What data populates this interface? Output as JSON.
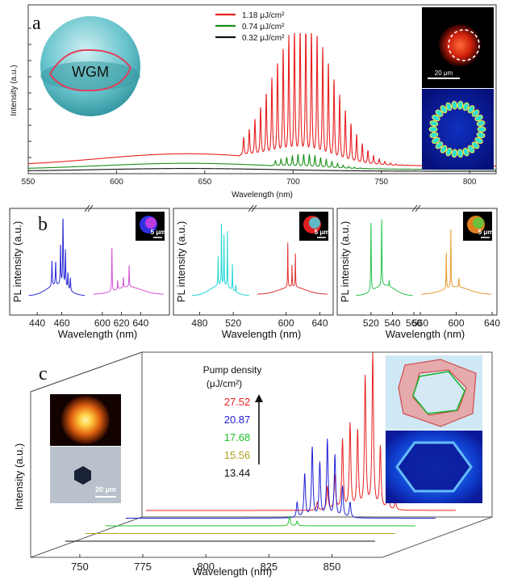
{
  "panel_a": {
    "letter": "a",
    "wgm_label": "WGM",
    "scalebar_label": "20 μm",
    "chart_data": {
      "type": "line",
      "xlabel": "Wavelength (nm)",
      "ylabel": "Intensity (a.u.)",
      "xlim": [
        550,
        815
      ],
      "xticks": [
        550,
        600,
        650,
        700,
        750,
        800
      ],
      "legend_position": "top-center",
      "series": [
        {
          "name": "1.18 μJ/cm²",
          "color": "#e8201f",
          "baseline": 0.05,
          "broad_amp": 0.09,
          "peaks_start": 672,
          "peaks_end": 773,
          "spacing": 3.2,
          "peak_center": 706,
          "peak_max": 1.0,
          "peak_width": 24
        },
        {
          "name": "0.74 μJ/cm²",
          "color": "#1a8f1a",
          "baseline": 0.025,
          "broad_amp": 0.045,
          "peaks_start": 690,
          "peaks_end": 752,
          "spacing": 3.2,
          "peak_center": 707,
          "peak_max": 0.09,
          "peak_width": 18
        },
        {
          "name": "0.32 μJ/cm²",
          "color": "#111111",
          "baseline": 0.012,
          "broad_amp": 0.02,
          "peaks_start": 0,
          "peaks_end": 0,
          "spacing": 3.2,
          "peak_center": 700,
          "peak_max": 0,
          "peak_width": 20
        }
      ]
    }
  },
  "panel_b": {
    "letter": "b",
    "scalebar_label": "5 μm",
    "subplots": [
      {
        "xlabel": "Wavelength (nm)",
        "ylabel": "PL intensity (a.u.)",
        "seg1": {
          "xlim": [
            432,
            480
          ],
          "xticks": [
            440,
            460
          ],
          "color": "#2b2bd6",
          "peaks": [
            [
              452,
              0.35
            ],
            [
              455,
              0.32
            ],
            [
              459,
              0.55
            ],
            [
              461,
              1.0
            ],
            [
              463,
              0.5
            ],
            [
              465,
              0.22
            ],
            [
              467,
              0.18
            ]
          ]
        },
        "seg2": {
          "xlim": [
            590,
            665
          ],
          "xticks": [
            600,
            620,
            640
          ],
          "color": "#d64fd6",
          "peaks": [
            [
              610,
              0.6
            ],
            [
              616,
              0.12
            ],
            [
              622,
              0.14
            ],
            [
              628,
              0.3
            ]
          ]
        }
      },
      {
        "xlabel": "Wavelength (nm)",
        "ylabel": "PL intensity (a.u.)",
        "seg1": {
          "xlim": [
            470,
            540
          ],
          "xticks": [
            480,
            520
          ],
          "color": "#20d6d6",
          "peaks": [
            [
              502,
              0.4
            ],
            [
              506,
              0.85
            ],
            [
              509,
              0.7
            ],
            [
              513,
              0.75
            ],
            [
              519,
              0.35
            ],
            [
              523,
              0.1
            ]
          ]
        },
        "seg2": {
          "xlim": [
            565,
            650
          ],
          "xticks": [
            600,
            640
          ],
          "color": "#e03030",
          "peaks": [
            [
              602,
              0.6
            ],
            [
              607,
              0.3
            ],
            [
              611,
              0.45
            ]
          ]
        }
      },
      {
        "xlabel": "Wavelength (nm)",
        "ylabel": "PL intensity (a.u.)",
        "seg1": {
          "xlim": [
            505,
            560
          ],
          "xticks": [
            520,
            540,
            560
          ],
          "color": "#22c24a",
          "peaks": [
            [
              520,
              0.95
            ],
            [
              530,
              0.9
            ],
            [
              537,
              0.08
            ]
          ]
        },
        "seg2": {
          "xlim": [
            560,
            640
          ],
          "xticks": [
            560,
            600,
            640
          ],
          "color": "#e89a2a",
          "peaks": [
            [
              589,
              0.5
            ],
            [
              594,
              0.78
            ],
            [
              603,
              0.12
            ]
          ]
        }
      }
    ]
  },
  "panel_c": {
    "letter": "c",
    "scalebar_label": "20 μm",
    "legend_title_line1": "Pump density",
    "legend_title_line2": "(μJ/cm²)",
    "chart_data": {
      "type": "line",
      "style": "waterfall-3d",
      "xlabel": "Wavelength (nm)",
      "ylabel": "Intensity (a.u.)",
      "xlim": [
        735,
        870
      ],
      "xticks": [
        750,
        775,
        800,
        825,
        850
      ],
      "series": [
        {
          "name": "27.52",
          "color": "#e8201f",
          "peaks": [
            [
              809,
              0.05
            ],
            [
              813,
              0.15
            ],
            [
              816,
              0.22
            ],
            [
              819,
              0.45
            ],
            [
              822,
              0.55
            ],
            [
              825,
              0.5
            ],
            [
              828,
              0.85
            ],
            [
              831,
              1.0
            ],
            [
              834,
              0.4
            ],
            [
              837,
              0.18
            ],
            [
              840,
              0.06
            ]
          ]
        },
        {
          "name": "20.87",
          "color": "#2020d6",
          "peaks": [
            [
              809,
              0.1
            ],
            [
              812,
              0.28
            ],
            [
              815,
              0.45
            ],
            [
              818,
              0.35
            ],
            [
              821,
              0.5
            ],
            [
              824,
              0.4
            ],
            [
              827,
              0.2
            ],
            [
              830,
              0.1
            ]
          ]
        },
        {
          "name": "17.68",
          "color": "#22c22a",
          "peaks": [
            [
              814,
              0.06
            ],
            [
              817,
              0.03
            ]
          ]
        },
        {
          "name": "15.56",
          "color": "#b0a020",
          "peaks": []
        },
        {
          "name": "13.44",
          "color": "#111111",
          "peaks": []
        }
      ]
    }
  }
}
